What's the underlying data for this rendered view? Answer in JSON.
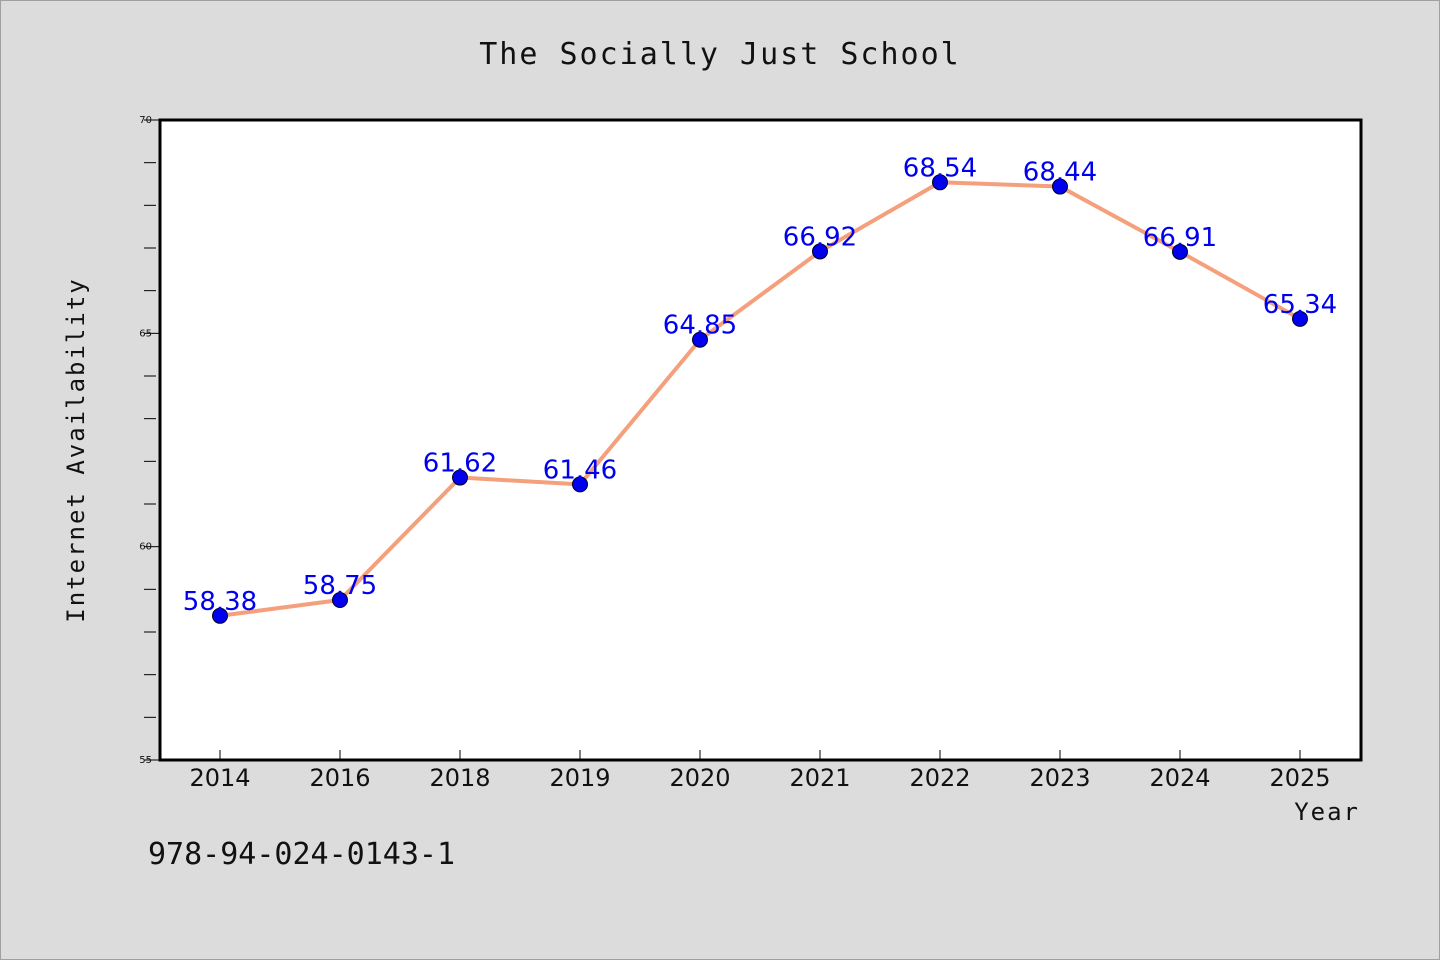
{
  "chart_data": {
    "type": "line",
    "title": "The Socially Just School",
    "xlabel": "Year",
    "ylabel": "Internet Availability",
    "categories": [
      "2014",
      "2016",
      "2018",
      "2019",
      "2020",
      "2021",
      "2022",
      "2023",
      "2024",
      "2025"
    ],
    "values": [
      58.38,
      58.75,
      61.62,
      61.46,
      64.85,
      66.92,
      68.54,
      68.44,
      66.91,
      65.34
    ],
    "data_labels": [
      "58.38",
      "58.75",
      "61.62",
      "61.46",
      "64.85",
      "66.92",
      "68.54",
      "68.44",
      "66.91",
      "65.34"
    ],
    "ylim": [
      55,
      70
    ],
    "yticks": [
      55,
      60,
      65,
      70
    ],
    "grid": false,
    "legend": "none",
    "line_color": "#f4a07c",
    "marker_color": "#0000ee",
    "label_color": "#0000ee"
  },
  "footer": {
    "code": "978-94-024-0143-1"
  }
}
